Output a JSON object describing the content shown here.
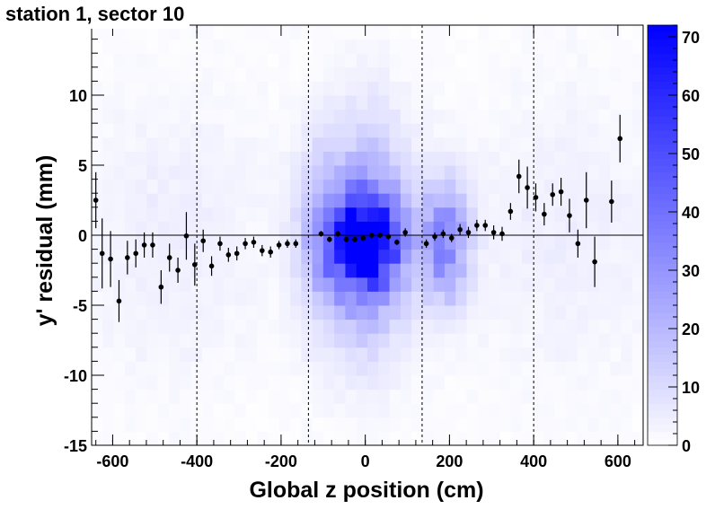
{
  "chart_data": {
    "type": "heatmap",
    "title": "station 1, sector 10",
    "xlabel": "Global z position (cm)",
    "ylabel": "y' residual (mm)",
    "xlim": [
      -650,
      660
    ],
    "ylim": [
      -15,
      15
    ],
    "x_ticks": [
      -600,
      -400,
      -200,
      0,
      200,
      400,
      600
    ],
    "y_ticks": [
      -15,
      -10,
      -5,
      0,
      5,
      10
    ],
    "colorbar": {
      "min": 0,
      "max": 72,
      "ticks": [
        0,
        10,
        20,
        30,
        40,
        50,
        60,
        70
      ],
      "low_color": "#ffffff",
      "high_color": "#0000ff"
    },
    "grid": false,
    "zero_line": 0,
    "dashed_boundaries_x": [
      -400,
      -135,
      135,
      400
    ],
    "heatmap": {
      "x_bins": 50,
      "y_bins": 30,
      "blobs": [
        {
          "x": 0,
          "y": -0.5,
          "sx": 55,
          "sy": 2.3,
          "amp": 66
        },
        {
          "x": 0,
          "y": 0,
          "sx": 75,
          "sy": 5.5,
          "amp": 28
        },
        {
          "x": 190,
          "y": -0.5,
          "sx": 40,
          "sy": 3.0,
          "amp": 32
        },
        {
          "x": -110,
          "y": 0,
          "sx": 40,
          "sy": 4.0,
          "amp": 14
        },
        {
          "x": -460,
          "y": 0,
          "sx": 160,
          "sy": 7.0,
          "amp": 4
        },
        {
          "x": 480,
          "y": 0,
          "sx": 160,
          "sy": 7.0,
          "amp": 4
        }
      ],
      "background": 1.5
    },
    "profile_points": [
      {
        "x": -640,
        "y": 2.5,
        "err": 2.0
      },
      {
        "x": -625,
        "y": -1.3,
        "err": 2.5
      },
      {
        "x": -605,
        "y": -1.7,
        "err": 2.0
      },
      {
        "x": -585,
        "y": -4.7,
        "err": 1.5
      },
      {
        "x": -565,
        "y": -1.6,
        "err": 1.2
      },
      {
        "x": -545,
        "y": -1.3,
        "err": 1.0
      },
      {
        "x": -525,
        "y": -0.7,
        "err": 0.9
      },
      {
        "x": -505,
        "y": -0.7,
        "err": 0.9
      },
      {
        "x": -485,
        "y": -3.7,
        "err": 1.2
      },
      {
        "x": -465,
        "y": -1.6,
        "err": 1.0
      },
      {
        "x": -445,
        "y": -2.5,
        "err": 0.9
      },
      {
        "x": -425,
        "y": -0.05,
        "err": 1.7
      },
      {
        "x": -405,
        "y": -2.1,
        "err": 1.5
      },
      {
        "x": -385,
        "y": -0.4,
        "err": 0.8
      },
      {
        "x": -365,
        "y": -2.2,
        "err": 0.7
      },
      {
        "x": -345,
        "y": -0.6,
        "err": 0.5
      },
      {
        "x": -325,
        "y": -1.4,
        "err": 0.5
      },
      {
        "x": -305,
        "y": -1.3,
        "err": 0.5
      },
      {
        "x": -285,
        "y": -0.6,
        "err": 0.4
      },
      {
        "x": -265,
        "y": -0.5,
        "err": 0.4
      },
      {
        "x": -245,
        "y": -1.1,
        "err": 0.4
      },
      {
        "x": -225,
        "y": -1.2,
        "err": 0.4
      },
      {
        "x": -205,
        "y": -0.7,
        "err": 0.3
      },
      {
        "x": -185,
        "y": -0.6,
        "err": 0.3
      },
      {
        "x": -165,
        "y": -0.6,
        "err": 0.3
      },
      {
        "x": -105,
        "y": 0.1,
        "err": 0.2
      },
      {
        "x": -85,
        "y": -0.3,
        "err": 0.2
      },
      {
        "x": -65,
        "y": 0.1,
        "err": 0.2
      },
      {
        "x": -45,
        "y": -0.3,
        "err": 0.2
      },
      {
        "x": -25,
        "y": -0.3,
        "err": 0.2
      },
      {
        "x": -5,
        "y": -0.2,
        "err": 0.2
      },
      {
        "x": 15,
        "y": 0.0,
        "err": 0.2
      },
      {
        "x": 35,
        "y": 0.0,
        "err": 0.2
      },
      {
        "x": 55,
        "y": -0.1,
        "err": 0.2
      },
      {
        "x": 75,
        "y": -0.5,
        "err": 0.2
      },
      {
        "x": 95,
        "y": 0.2,
        "err": 0.3
      },
      {
        "x": 145,
        "y": -0.6,
        "err": 0.3
      },
      {
        "x": 165,
        "y": -0.1,
        "err": 0.3
      },
      {
        "x": 185,
        "y": 0.1,
        "err": 0.3
      },
      {
        "x": 205,
        "y": -0.2,
        "err": 0.3
      },
      {
        "x": 225,
        "y": 0.4,
        "err": 0.4
      },
      {
        "x": 245,
        "y": 0.2,
        "err": 0.4
      },
      {
        "x": 265,
        "y": 0.7,
        "err": 0.4
      },
      {
        "x": 285,
        "y": 0.7,
        "err": 0.4
      },
      {
        "x": 305,
        "y": 0.2,
        "err": 0.5
      },
      {
        "x": 325,
        "y": 0.1,
        "err": 0.5
      },
      {
        "x": 345,
        "y": 1.7,
        "err": 0.6
      },
      {
        "x": 365,
        "y": 4.2,
        "err": 1.2
      },
      {
        "x": 385,
        "y": 3.4,
        "err": 1.5
      },
      {
        "x": 405,
        "y": 2.7,
        "err": 1.0
      },
      {
        "x": 425,
        "y": 1.5,
        "err": 0.8
      },
      {
        "x": 445,
        "y": 2.9,
        "err": 0.8
      },
      {
        "x": 465,
        "y": 3.1,
        "err": 1.0
      },
      {
        "x": 485,
        "y": 1.4,
        "err": 1.2
      },
      {
        "x": 505,
        "y": -0.6,
        "err": 1.0
      },
      {
        "x": 525,
        "y": 2.5,
        "err": 2.0
      },
      {
        "x": 545,
        "y": -1.9,
        "err": 1.8
      },
      {
        "x": 585,
        "y": 2.4,
        "err": 1.5
      },
      {
        "x": 605,
        "y": 6.9,
        "err": 1.7
      }
    ]
  }
}
